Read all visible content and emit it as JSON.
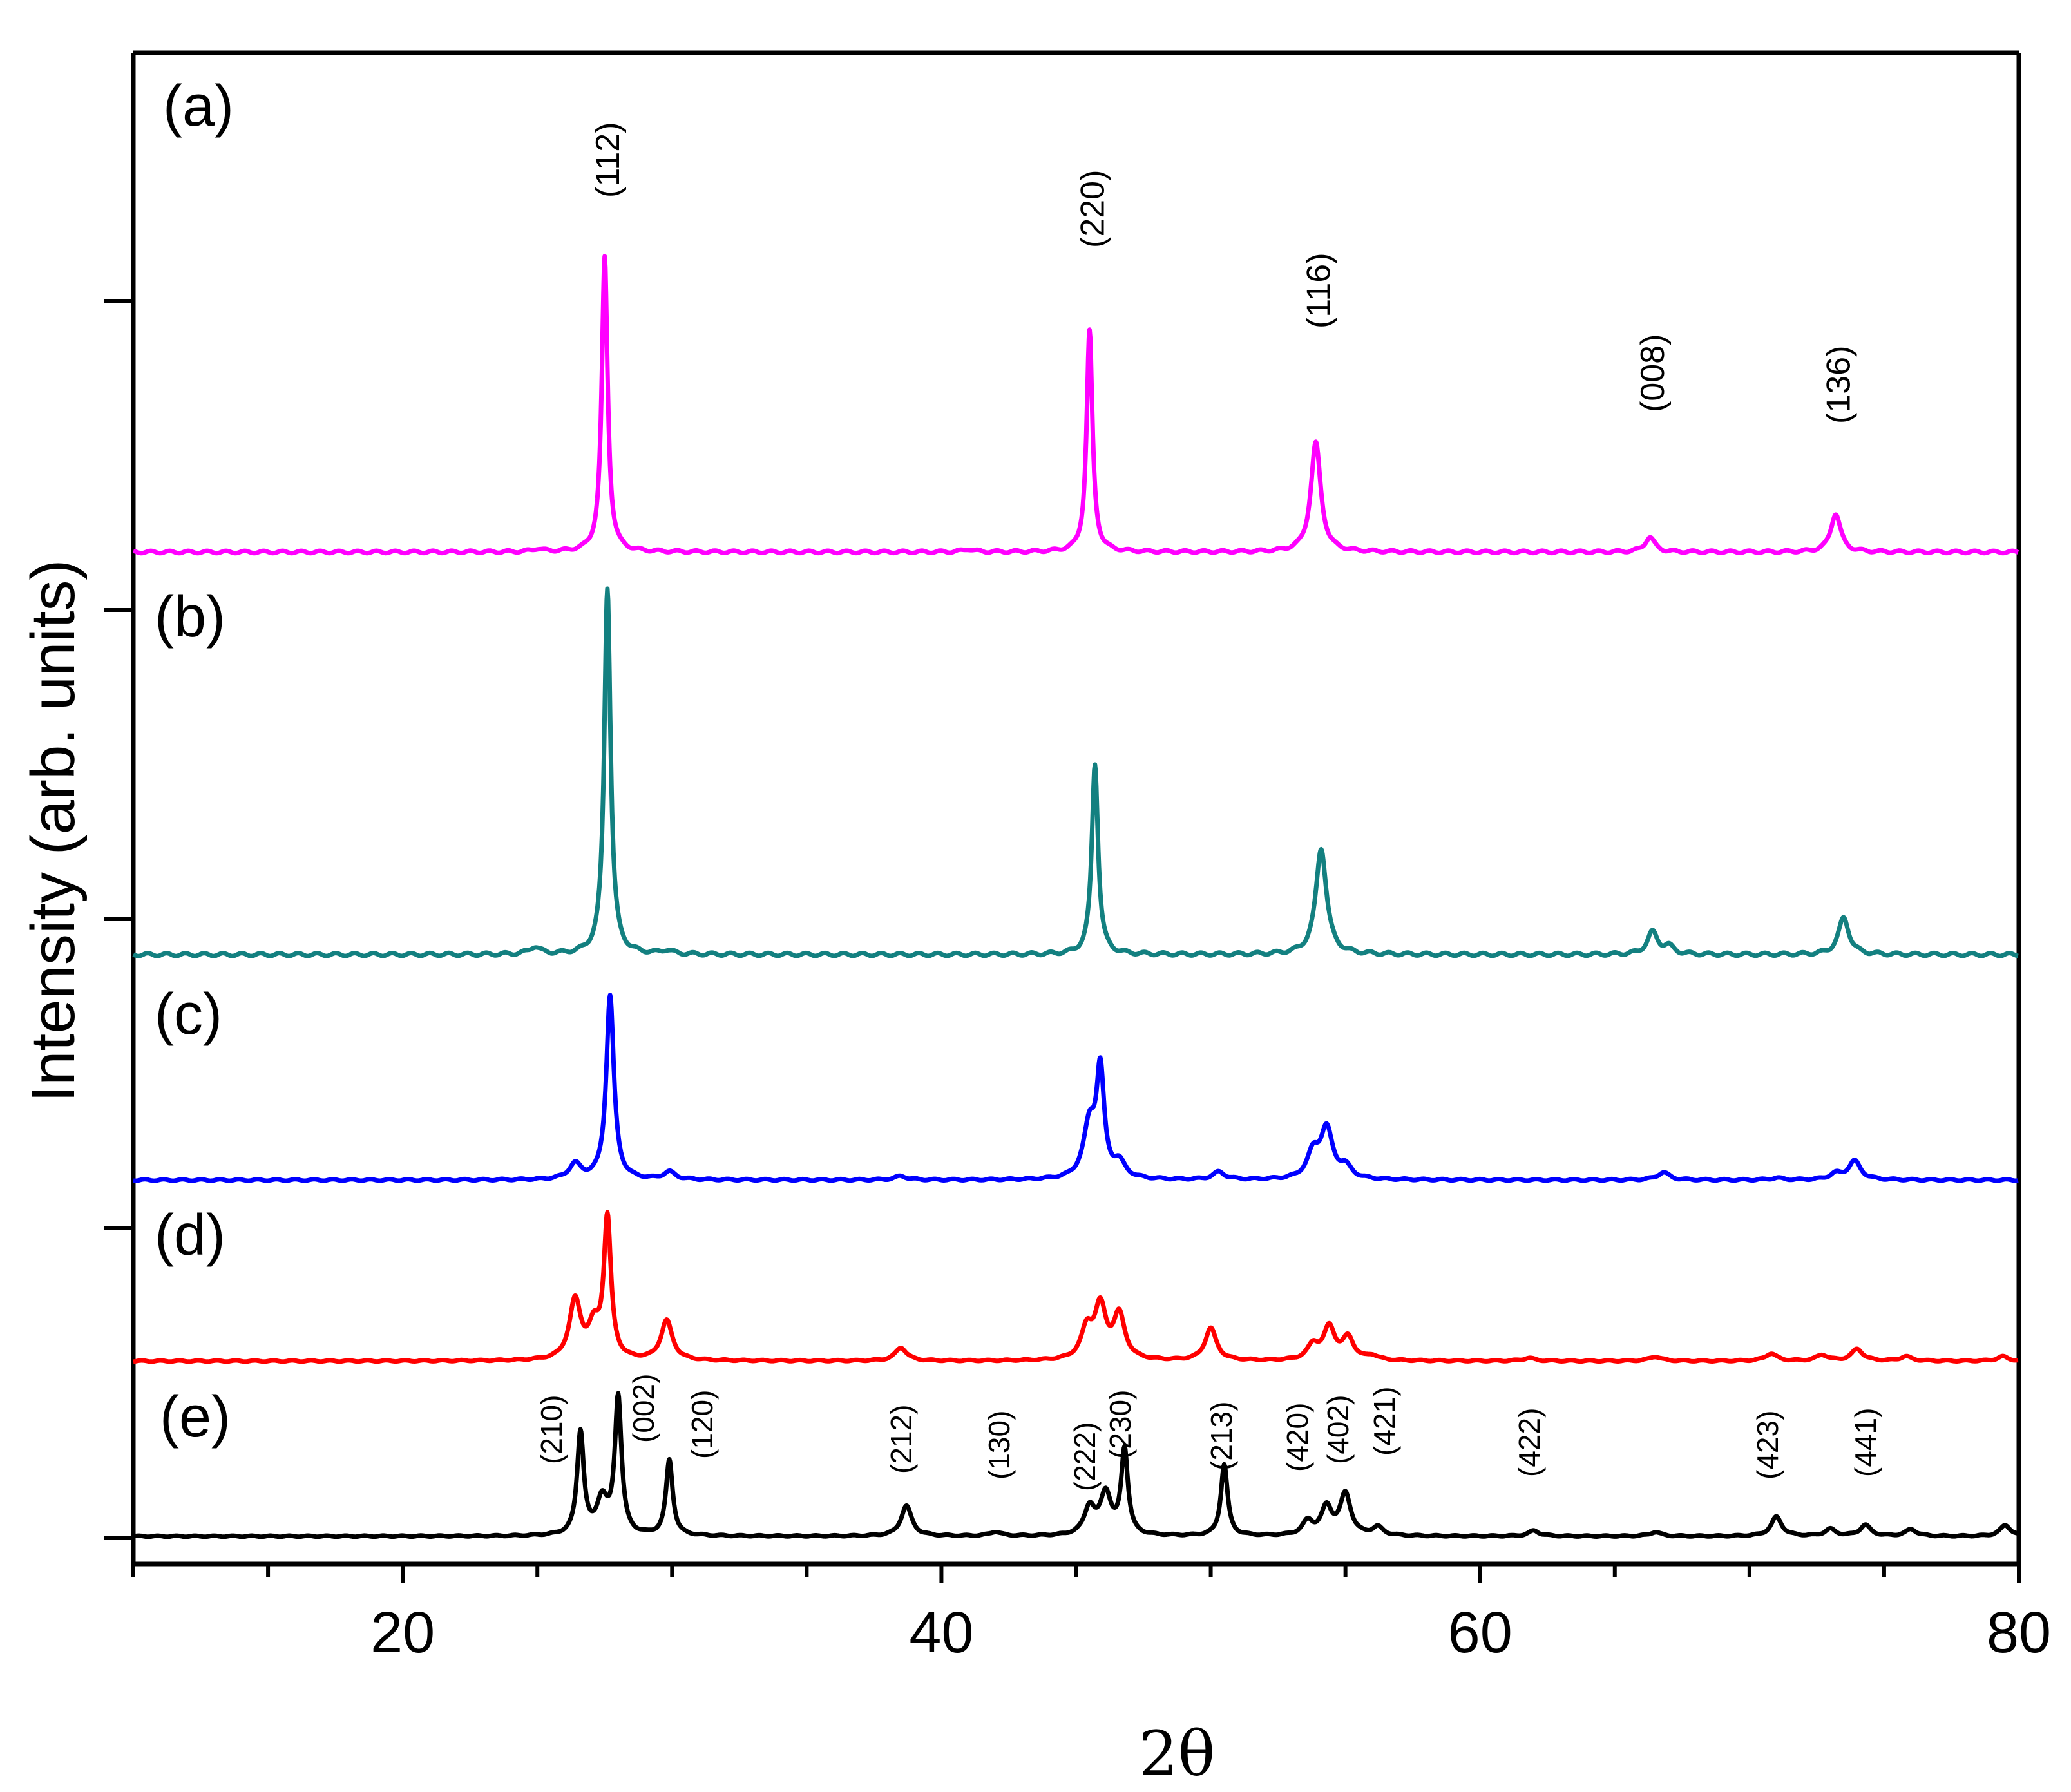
{
  "chart_data": {
    "type": "line",
    "title": "",
    "xlabel": "2θ",
    "ylabel": "Intensity (arb. units)",
    "xlim": [
      10,
      80
    ],
    "xticks": [
      20,
      40,
      60,
      80
    ],
    "x_tick_labels": [
      "20",
      "40",
      "60",
      "80"
    ],
    "y_ticks_unlabeled": 5,
    "grid": false,
    "series": [
      {
        "name": "(a)",
        "label": "(a)",
        "color": "#ff00ff",
        "peaks": [
          [
            25.0,
            0.01
          ],
          [
            27.5,
            1.0
          ],
          [
            41.0,
            0.01
          ],
          [
            45.5,
            0.75
          ],
          [
            53.9,
            0.37
          ],
          [
            66.3,
            0.05
          ],
          [
            73.2,
            0.13
          ]
        ]
      },
      {
        "name": "(b)",
        "label": "(b)",
        "color": "#138080",
        "peaks": [
          [
            24.9,
            0.02
          ],
          [
            27.6,
            1.0
          ],
          [
            29.8,
            0.01
          ],
          [
            45.7,
            0.52
          ],
          [
            54.1,
            0.29
          ],
          [
            66.4,
            0.06
          ],
          [
            67.0,
            0.02
          ],
          [
            73.5,
            0.1
          ]
        ]
      },
      {
        "name": "(c)",
        "label": "(c)",
        "color": "#0000ff",
        "peaks": [
          [
            26.4,
            0.08
          ],
          [
            27.7,
            0.98
          ],
          [
            29.9,
            0.04
          ],
          [
            38.5,
            0.02
          ],
          [
            45.5,
            0.28
          ],
          [
            45.9,
            0.55
          ],
          [
            46.6,
            0.08
          ],
          [
            50.3,
            0.04
          ],
          [
            53.8,
            0.13
          ],
          [
            54.3,
            0.26
          ],
          [
            55.0,
            0.06
          ],
          [
            66.8,
            0.04
          ],
          [
            71.0,
            0.01
          ],
          [
            73.2,
            0.03
          ],
          [
            73.9,
            0.1
          ]
        ]
      },
      {
        "name": "(d)",
        "label": "(d)",
        "color": "#ff0000",
        "peaks": [
          [
            26.4,
            0.4
          ],
          [
            27.6,
            0.95
          ],
          [
            27.1,
            0.2
          ],
          [
            29.8,
            0.27
          ],
          [
            38.5,
            0.09
          ],
          [
            45.4,
            0.2
          ],
          [
            45.9,
            0.35
          ],
          [
            46.6,
            0.3
          ],
          [
            50.0,
            0.22
          ],
          [
            53.8,
            0.1
          ],
          [
            54.4,
            0.22
          ],
          [
            55.1,
            0.15
          ],
          [
            56.0,
            0.03
          ],
          [
            61.8,
            0.02
          ],
          [
            66.5,
            0.03
          ],
          [
            70.8,
            0.05
          ],
          [
            72.7,
            0.04
          ],
          [
            74.0,
            0.08
          ],
          [
            75.8,
            0.03
          ],
          [
            79.4,
            0.03
          ]
        ]
      },
      {
        "name": "(e)",
        "label": "(e)",
        "color": "#000000",
        "peaks": [
          [
            26.6,
            0.75
          ],
          [
            27.4,
            0.25
          ],
          [
            28.0,
            1.0
          ],
          [
            29.9,
            0.55
          ],
          [
            38.7,
            0.22
          ],
          [
            42.0,
            0.03
          ],
          [
            45.5,
            0.2
          ],
          [
            46.1,
            0.3
          ],
          [
            46.8,
            0.62
          ],
          [
            50.5,
            0.52
          ],
          [
            53.6,
            0.1
          ],
          [
            54.3,
            0.2
          ],
          [
            55.0,
            0.3
          ],
          [
            56.2,
            0.06
          ],
          [
            62.0,
            0.04
          ],
          [
            66.5,
            0.03
          ],
          [
            71.0,
            0.14
          ],
          [
            73.0,
            0.05
          ],
          [
            74.3,
            0.08
          ],
          [
            76.0,
            0.05
          ],
          [
            79.5,
            0.08
          ]
        ]
      }
    ],
    "peak_labels_a": [
      {
        "text": "(112)",
        "x": 27.5
      },
      {
        "text": "(220)",
        "x": 45.5
      },
      {
        "text": "(116)",
        "x": 53.9
      },
      {
        "text": "(008)",
        "x": 66.3
      },
      {
        "text": "(136)",
        "x": 73.2
      }
    ],
    "peak_labels_e": [
      {
        "text": "(210)",
        "x": 26.6
      },
      {
        "text": "(002)",
        "x": 28.0
      },
      {
        "text": "(120)",
        "x": 29.9
      },
      {
        "text": "(212)",
        "x": 38.7
      },
      {
        "text": "(130)",
        "x": 42.0
      },
      {
        "text": "(222)",
        "x": 45.5
      },
      {
        "text": "(230)",
        "x": 46.8
      },
      {
        "text": "(213)",
        "x": 50.5
      },
      {
        "text": "(420)",
        "x": 53.6
      },
      {
        "text": "(402)",
        "x": 54.3
      },
      {
        "text": "(421)",
        "x": 56.2
      },
      {
        "text": "(422)",
        "x": 62.0
      },
      {
        "text": "(423)",
        "x": 71.0
      },
      {
        "text": "(441)",
        "x": 74.3
      }
    ]
  }
}
